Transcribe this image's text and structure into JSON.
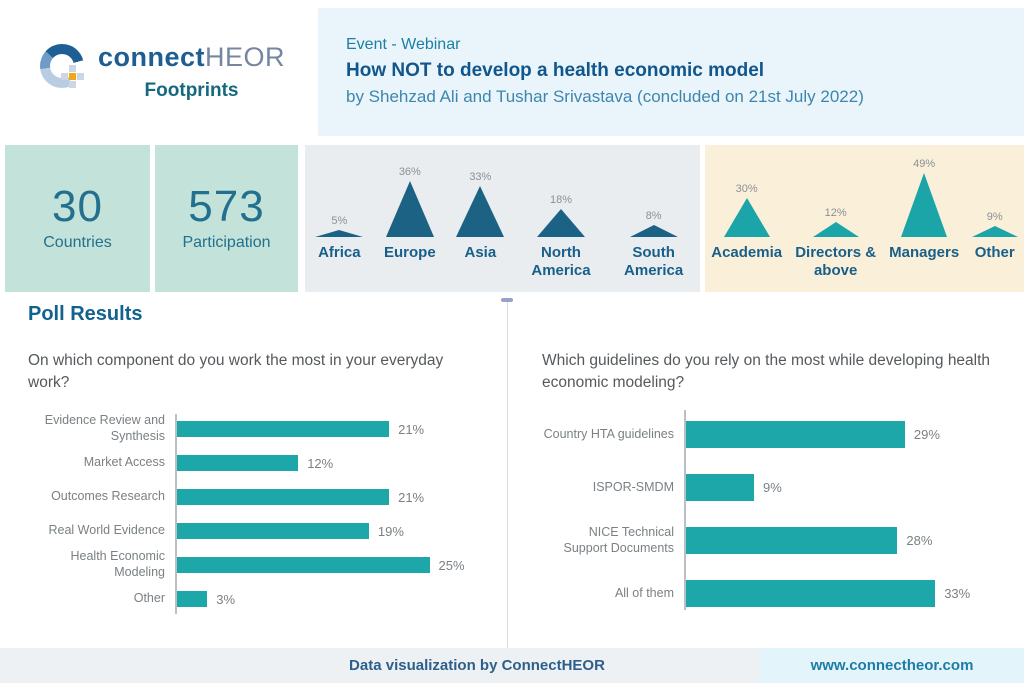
{
  "colors": {
    "dark_blue": "#1b6285",
    "teal": "#1ba5a8",
    "bar_teal": "#1ea7a8",
    "mint_card": "#c3e3da",
    "cream_panel": "#faf0da",
    "gray_panel": "#e9edf0",
    "header_blue_panel": "#e9f5fa",
    "footer_gray": "#eef1f4",
    "footer_blue": "#e3f4fa",
    "logo_orange": "#f2a71b",
    "heading_blue": "#13618e",
    "text_gray": "#7a8084"
  },
  "header": {
    "logo": {
      "brand_part1": "connect",
      "brand_part2": "HEOR",
      "tagline": "Footprints"
    },
    "event": {
      "kind": "Event - Webinar",
      "title": "How NOT to develop a health economic model",
      "byline": "by Shehzad Ali and Tushar Srivastava (concluded on 21st July 2022)"
    }
  },
  "stats": {
    "cards": [
      {
        "value": "30",
        "label": "Countries"
      },
      {
        "value": "573",
        "label": "Participation"
      }
    ]
  },
  "polls": {
    "heading": "Poll Results",
    "left_question": "On which component do you work the most in your everyday work?",
    "right_question": "Which guidelines do you rely on the most while developing health economic modeling?"
  },
  "footer": {
    "credit": "Data visualization by ConnectHEOR",
    "website": "www.connectheor.com"
  },
  "chart_data": [
    {
      "type": "bar",
      "variant": "triangle-pictogram",
      "title": "Participants by region",
      "unit": "%",
      "categories": [
        "Africa",
        "Europe",
        "Asia",
        "North America",
        "South America"
      ],
      "values": [
        5,
        36,
        33,
        18,
        8
      ],
      "value_labels": [
        "5%",
        "36%",
        "33%",
        "18%",
        "8%"
      ],
      "color": "#1b6285",
      "background": "#e9edf0",
      "legend": "off",
      "grid": "off"
    },
    {
      "type": "bar",
      "variant": "triangle-pictogram",
      "title": "Participants by role",
      "unit": "%",
      "categories": [
        "Academia",
        "Directors & above",
        "Managers",
        "Other"
      ],
      "values": [
        30,
        12,
        49,
        9
      ],
      "value_labels": [
        "30%",
        "12%",
        "49%",
        "9%"
      ],
      "color": "#1ba5a8",
      "background": "#faf0da",
      "legend": "off",
      "grid": "off"
    },
    {
      "type": "bar",
      "orientation": "horizontal",
      "title": "On which component do you work the most in your everyday work?",
      "unit": "%",
      "categories": [
        "Evidence Review and Synthesis",
        "Market Access",
        "Outcomes Research",
        "Real World Evidence",
        "Health Economic Modeling",
        "Other"
      ],
      "values": [
        21,
        12,
        21,
        19,
        25,
        3
      ],
      "value_labels": [
        "21%",
        "12%",
        "21%",
        "19%",
        "25%",
        "3%"
      ],
      "color": "#1ea7a8",
      "xlim": [
        0,
        30
      ],
      "legend": "off",
      "grid": "off"
    },
    {
      "type": "bar",
      "orientation": "horizontal",
      "title": "Which guidelines do you rely on the most while developing health economic modeling?",
      "unit": "%",
      "categories": [
        "Country HTA guidelines",
        "ISPOR-SMDM",
        "NICE Technical Support Documents",
        "All of them"
      ],
      "values": [
        29,
        9,
        28,
        33
      ],
      "value_labels": [
        "29%",
        "9%",
        "28%",
        "33%"
      ],
      "color": "#1ea7a8",
      "xlim": [
        0,
        35
      ],
      "legend": "off",
      "grid": "off"
    }
  ]
}
